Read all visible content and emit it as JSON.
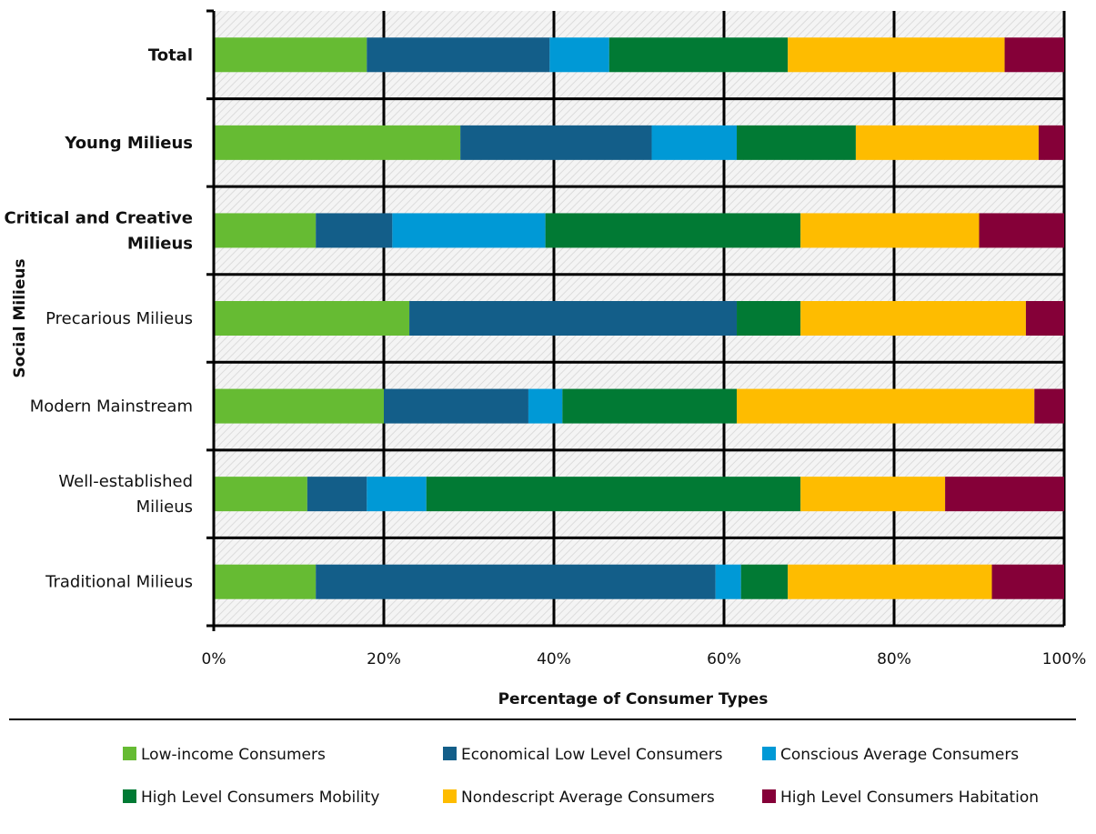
{
  "chart_data": {
    "type": "bar",
    "orientation": "horizontal",
    "stacked": "percent",
    "categories": [
      "Total",
      "Young Milieus",
      "Critical and Creative Milieus",
      "Precarious Milieus",
      "Modern Mainstream",
      "Well-established Milieus",
      "Traditional Milieus"
    ],
    "category_lines": [
      [
        "Total"
      ],
      [
        "Young Milieus"
      ],
      [
        "Critical and Creative",
        "Milieus"
      ],
      [
        "Precarious Milieus"
      ],
      [
        "Modern Mainstream"
      ],
      [
        "Well-established",
        "Milieus"
      ],
      [
        "Traditional Milieus"
      ]
    ],
    "bold_categories": [
      true,
      true,
      true,
      false,
      false,
      false,
      false
    ],
    "series": [
      {
        "name": "Low-income Consumers",
        "color": "#66BB33",
        "values": [
          18,
          29,
          12,
          23,
          20,
          11,
          12
        ]
      },
      {
        "name": "Economical Low Level Consumers",
        "color": "#135E89",
        "values": [
          21.5,
          22.5,
          9,
          38.5,
          17,
          7,
          47
        ]
      },
      {
        "name": "Conscious Average Consumers",
        "color": "#0099D6",
        "values": [
          7,
          10,
          18,
          0,
          4,
          7,
          3
        ]
      },
      {
        "name": "High Level Consumers Mobility",
        "color": "#017A34",
        "values": [
          21,
          14,
          30,
          7.5,
          20.5,
          44,
          5.5
        ]
      },
      {
        "name": "Nondescript Average Consumers",
        "color": "#FEBC00",
        "values": [
          25.5,
          21.5,
          21,
          26.5,
          35,
          17,
          24
        ]
      },
      {
        "name": "High Level Consumers Habitation",
        "color": "#850038",
        "values": [
          7,
          3,
          10,
          4.5,
          3.5,
          14,
          8.5
        ]
      }
    ],
    "xlim": [
      0,
      100
    ],
    "x_ticks": [
      "0%",
      "20%",
      "40%",
      "60%",
      "80%",
      "100%"
    ],
    "xlabel": "Percentage of Consumer Types",
    "ylabel": "Social Milieus",
    "grid": true,
    "legend_position": "bottom"
  }
}
